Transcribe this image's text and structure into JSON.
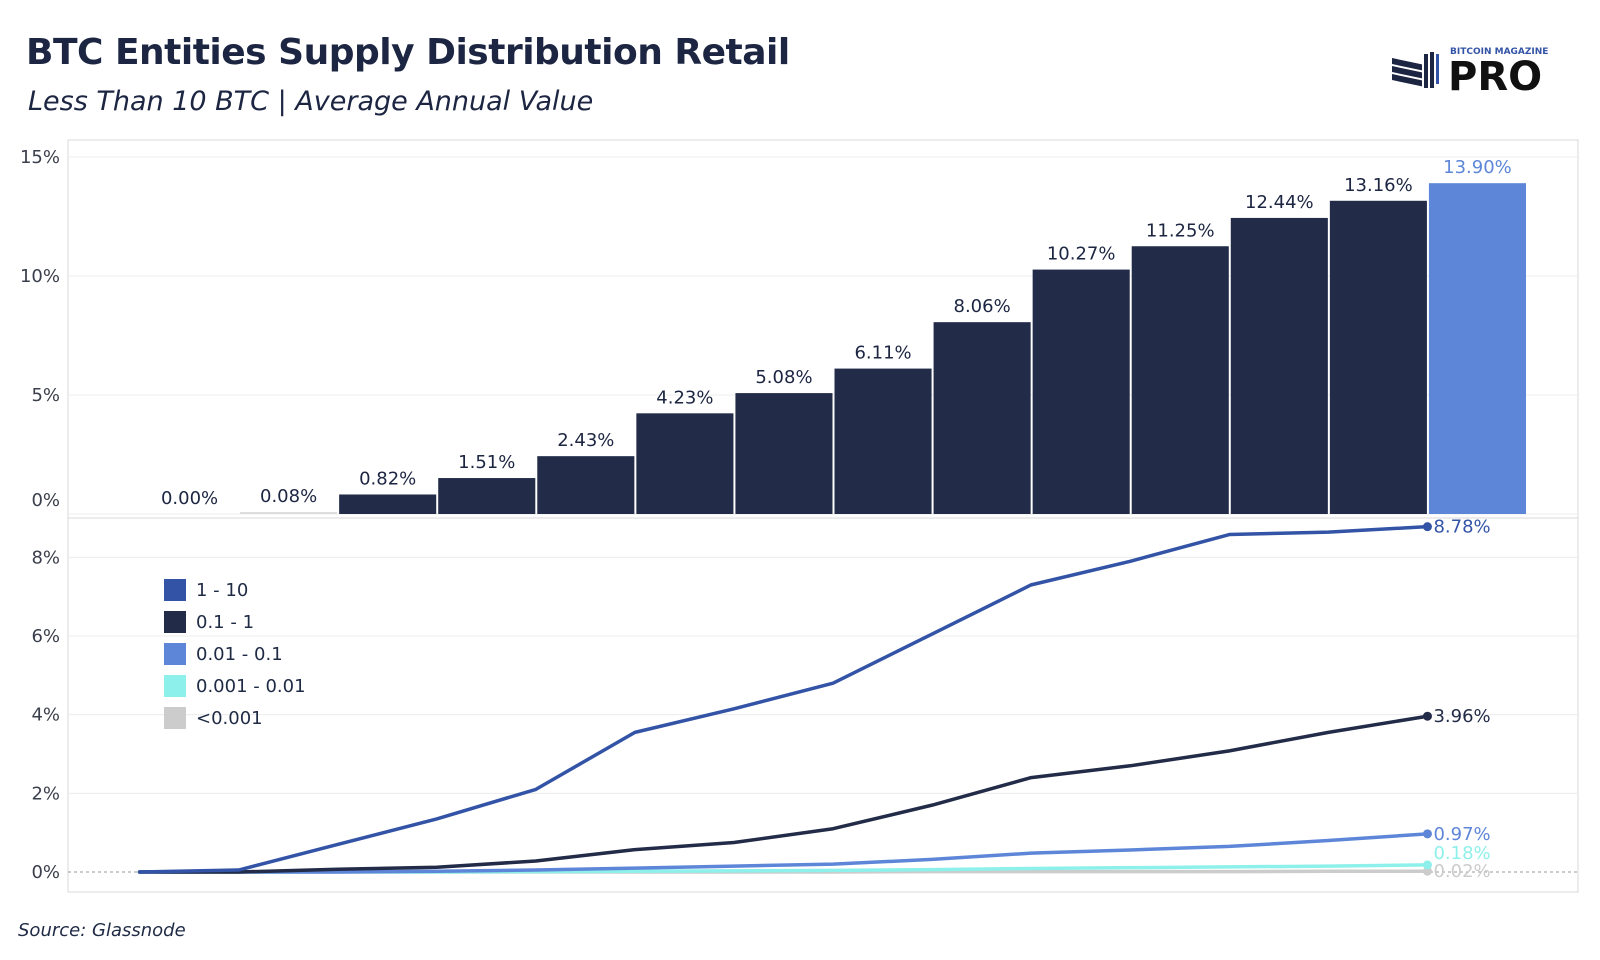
{
  "header": {
    "title": "BTC Entities Supply Distribution Retail",
    "subtitle": "Less Than 10 BTC | Average Annual Value"
  },
  "logo": {
    "small_text": "BITCOIN MAGAZINE",
    "big_text": "PRO"
  },
  "source": "Source: Glassnode",
  "colors": {
    "bar_dark": "#222b47",
    "bar_highlight": "#5e86d8",
    "series_1_10": "#3354a6",
    "series_0_1_1": "#222b47",
    "series_0_01_0_1": "#5e86d8",
    "series_0_001_0_01": "#8ef0ea",
    "series_lt_0_001": "#cccccc"
  },
  "chart_data": [
    {
      "type": "bar",
      "title": "",
      "xlabel": "",
      "ylabel": "",
      "ylim": [
        0,
        15
      ],
      "ytick_labels": [
        "0%",
        "5%",
        "10%",
        "15%"
      ],
      "ytick_values": [
        0,
        5,
        10,
        15
      ],
      "values": [
        0.0,
        0.08,
        0.82,
        1.51,
        2.43,
        4.23,
        5.08,
        6.11,
        8.06,
        10.27,
        11.25,
        12.44,
        13.16,
        13.9
      ],
      "labels": [
        "0.00%",
        "0.08%",
        "0.82%",
        "1.51%",
        "2.43%",
        "4.23%",
        "5.08%",
        "6.11%",
        "8.06%",
        "10.27%",
        "11.25%",
        "12.44%",
        "13.16%",
        "13.90%"
      ],
      "highlight_last": true,
      "grid": true
    },
    {
      "type": "line",
      "title": "",
      "xlabel": "",
      "ylabel": "",
      "ylim": [
        0,
        9
      ],
      "ytick_labels": [
        "0%",
        "2%",
        "4%",
        "6%",
        "8%"
      ],
      "ytick_values": [
        0,
        2,
        4,
        6,
        8
      ],
      "grid": true,
      "legend_position": "upper-left",
      "series": [
        {
          "name": "1 - 10",
          "color": "#3354a6",
          "end_label": "8.78%",
          "values": [
            0.0,
            0.05,
            0.7,
            1.35,
            2.1,
            3.55,
            4.15,
            4.8,
            6.05,
            7.3,
            7.9,
            8.58,
            8.64,
            8.78
          ]
        },
        {
          "name": "0.1 - 1",
          "color": "#222b47",
          "end_label": "3.96%",
          "values": [
            0.0,
            0.0,
            0.07,
            0.12,
            0.28,
            0.57,
            0.75,
            1.1,
            1.7,
            2.4,
            2.7,
            3.08,
            3.55,
            3.96
          ]
        },
        {
          "name": "0.01 - 0.1",
          "color": "#5e86d8",
          "end_label": "0.97%",
          "values": [
            0.0,
            0.0,
            0.0,
            0.02,
            0.05,
            0.1,
            0.15,
            0.2,
            0.32,
            0.48,
            0.56,
            0.65,
            0.8,
            0.97
          ]
        },
        {
          "name": "0.001 - 0.01",
          "color": "#8ef0ea",
          "end_label": "0.18%",
          "values": [
            0.0,
            0.0,
            0.0,
            0.0,
            0.01,
            0.02,
            0.03,
            0.04,
            0.06,
            0.09,
            0.11,
            0.13,
            0.15,
            0.18
          ]
        },
        {
          "name": "<0.001",
          "color": "#cccccc",
          "end_label": "0.02%",
          "values": [
            0.0,
            0.0,
            0.0,
            0.0,
            0.0,
            0.0,
            0.0,
            0.0,
            0.01,
            0.01,
            0.01,
            0.01,
            0.02,
            0.02
          ]
        }
      ]
    }
  ]
}
